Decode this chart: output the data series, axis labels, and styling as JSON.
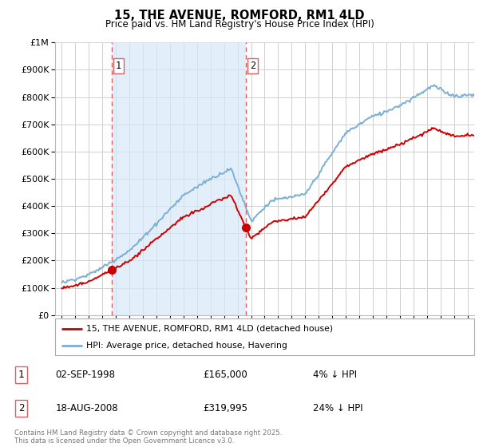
{
  "title": "15, THE AVENUE, ROMFORD, RM1 4LD",
  "subtitle": "Price paid vs. HM Land Registry's House Price Index (HPI)",
  "ytick_values": [
    0,
    100000,
    200000,
    300000,
    400000,
    500000,
    600000,
    700000,
    800000,
    900000,
    1000000
  ],
  "ylim": [
    0,
    1000000
  ],
  "xlim_start": 1994.5,
  "xlim_end": 2025.5,
  "hpi_color": "#7bafd4",
  "hpi_fill_color": "#d6e8f7",
  "price_color": "#cc0000",
  "vline_color": "#e06060",
  "purchase1_x": 1998.67,
  "purchase1_y": 165000,
  "purchase2_x": 2008.62,
  "purchase2_y": 319995,
  "legend_label1": "15, THE AVENUE, ROMFORD, RM1 4LD (detached house)",
  "legend_label2": "HPI: Average price, detached house, Havering",
  "annotation1_label": "1",
  "annotation1_date": "02-SEP-1998",
  "annotation1_price": "£165,000",
  "annotation1_hpi": "4% ↓ HPI",
  "annotation2_label": "2",
  "annotation2_date": "18-AUG-2008",
  "annotation2_price": "£319,995",
  "annotation2_hpi": "24% ↓ HPI",
  "copyright_text": "Contains HM Land Registry data © Crown copyright and database right 2025.\nThis data is licensed under the Open Government Licence v3.0."
}
